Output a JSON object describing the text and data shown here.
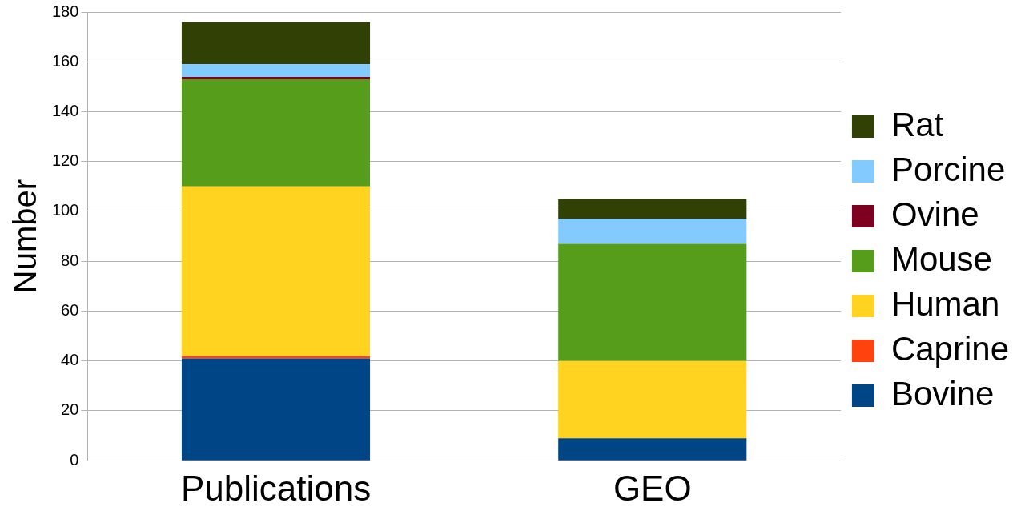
{
  "chart_data": {
    "type": "bar",
    "stacked": true,
    "ylabel": "Number",
    "categories": [
      "Publications",
      "GEO"
    ],
    "series": [
      {
        "name": "Bovine",
        "color": "#004586",
        "values": [
          41,
          9
        ]
      },
      {
        "name": "Caprine",
        "color": "#ff420e",
        "values": [
          1,
          0
        ]
      },
      {
        "name": "Human",
        "color": "#ffd320",
        "values": [
          68,
          31
        ]
      },
      {
        "name": "Mouse",
        "color": "#579d1c",
        "values": [
          43,
          47
        ]
      },
      {
        "name": "Ovine",
        "color": "#7e0021",
        "values": [
          1,
          0
        ]
      },
      {
        "name": "Porcine",
        "color": "#83caff",
        "values": [
          5,
          10
        ]
      },
      {
        "name": "Rat",
        "color": "#314004",
        "values": [
          17,
          8
        ]
      }
    ],
    "ylim": [
      0,
      180
    ],
    "yticks": [
      0,
      20,
      40,
      60,
      80,
      100,
      120,
      140,
      160,
      180
    ],
    "grid": "y",
    "legend": "right"
  }
}
